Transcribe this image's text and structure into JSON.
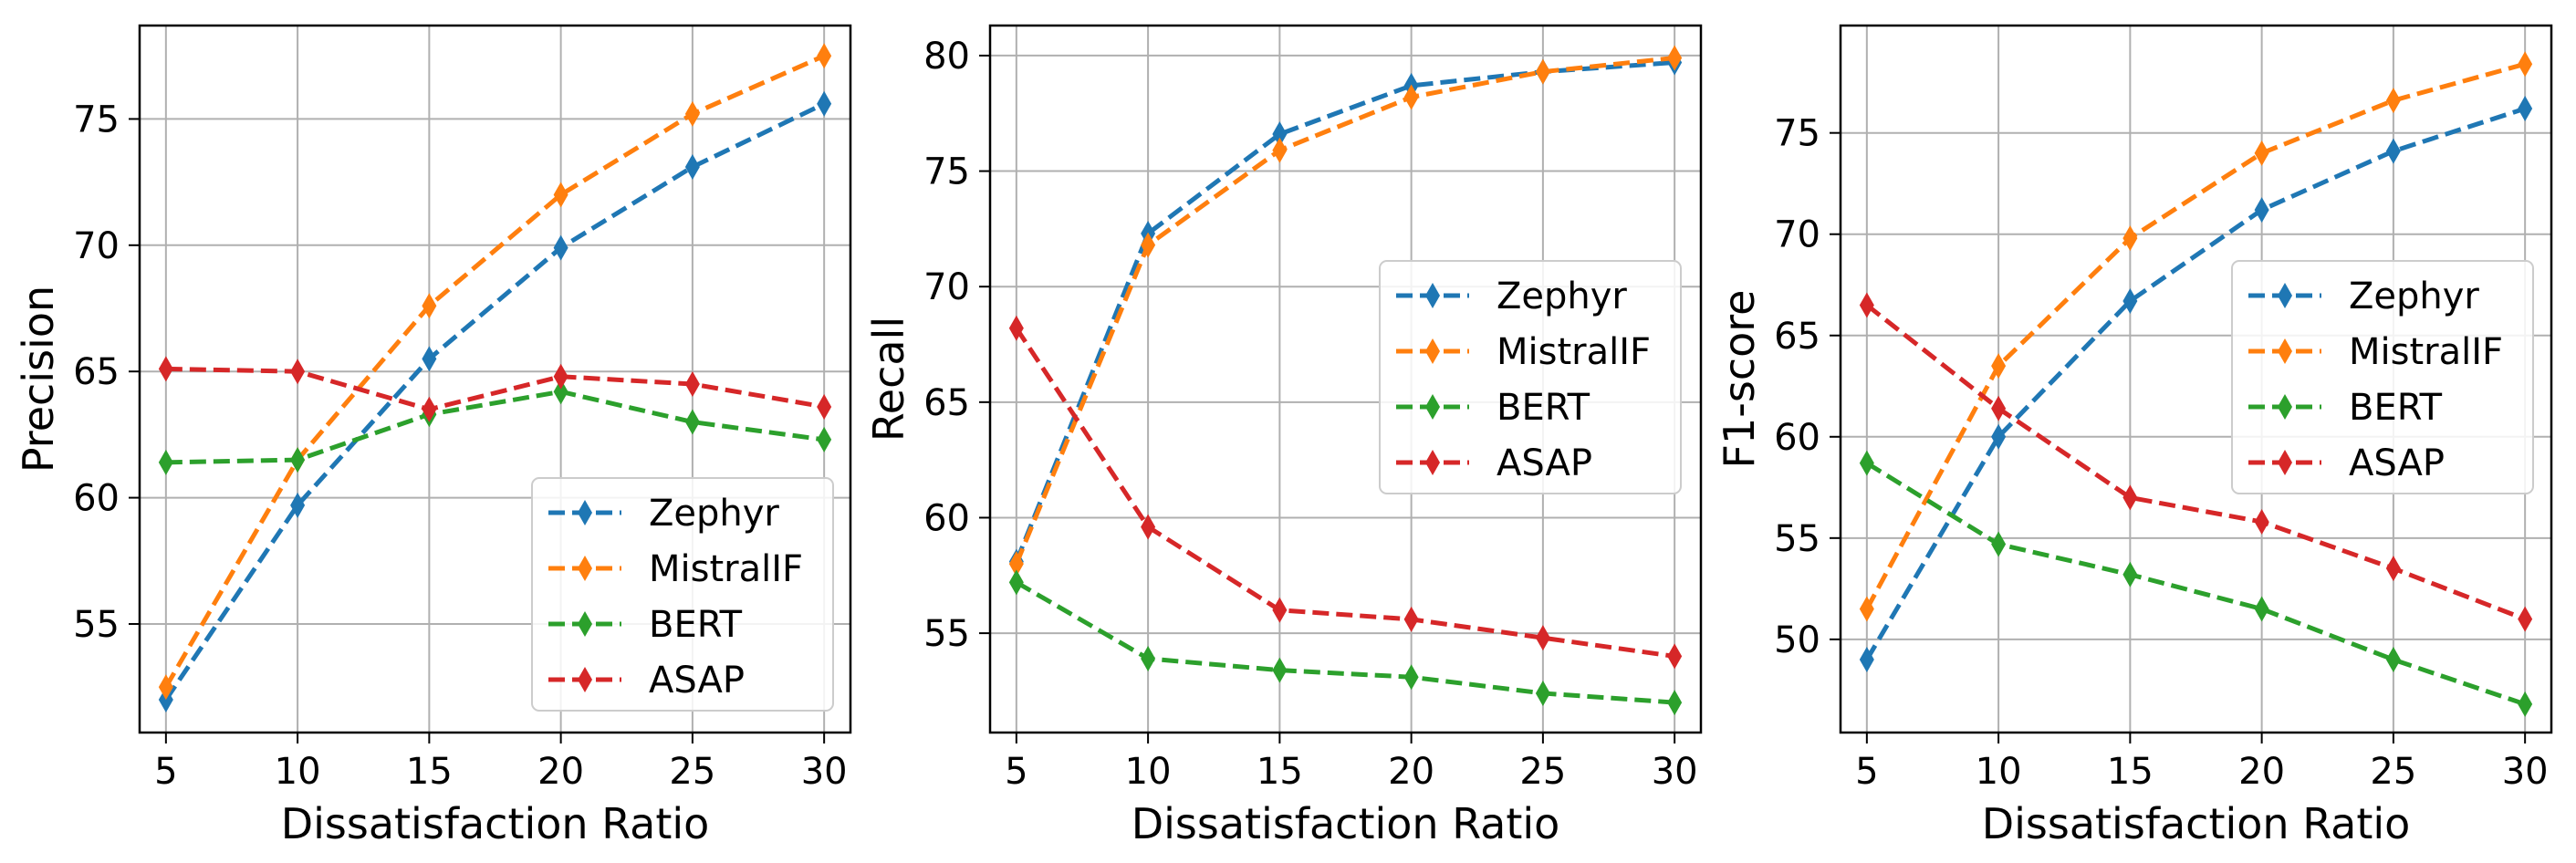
{
  "colors": {
    "Zephyr": "#1f77b4",
    "MistralIF": "#ff7f0e",
    "BERT": "#2ca02c",
    "ASAP": "#d62728",
    "grid": "#b0b0b0",
    "axes": "#000000"
  },
  "chart_data": [
    {
      "type": "line",
      "title": "",
      "xlabel": "Dissatisfaction Ratio",
      "ylabel": "Precision",
      "x": [
        5,
        10,
        15,
        20,
        25,
        30
      ],
      "xticks": [
        5,
        10,
        15,
        20,
        25,
        30
      ],
      "yticks": [
        55,
        60,
        65,
        70,
        75
      ],
      "xlim": [
        4.0,
        31.0
      ],
      "ylim": [
        50.7,
        78.7
      ],
      "grid": true,
      "legend_position": "lower-right",
      "marker": "thin-diamond",
      "linestyle": "dashed",
      "series": [
        {
          "name": "Zephyr",
          "values": [
            52.0,
            59.7,
            65.5,
            69.9,
            73.1,
            75.6
          ]
        },
        {
          "name": "MistralIF",
          "values": [
            52.5,
            61.5,
            67.6,
            72.0,
            75.2,
            77.5
          ]
        },
        {
          "name": "BERT",
          "values": [
            61.4,
            61.5,
            63.3,
            64.2,
            63.0,
            62.3
          ]
        },
        {
          "name": "ASAP",
          "values": [
            65.1,
            65.0,
            63.5,
            64.8,
            64.5,
            63.6
          ]
        }
      ]
    },
    {
      "type": "line",
      "title": "",
      "xlabel": "Dissatisfaction Ratio",
      "ylabel": "Recall",
      "x": [
        5,
        10,
        15,
        20,
        25,
        30
      ],
      "xticks": [
        5,
        10,
        15,
        20,
        25,
        30
      ],
      "yticks": [
        55,
        60,
        65,
        70,
        75,
        80
      ],
      "xlim": [
        4.0,
        31.0
      ],
      "ylim": [
        50.7,
        81.3
      ],
      "grid": true,
      "legend_position": "center-right",
      "marker": "thin-diamond",
      "linestyle": "dashed",
      "series": [
        {
          "name": "Zephyr",
          "values": [
            58.1,
            72.3,
            76.6,
            78.7,
            79.3,
            79.7
          ]
        },
        {
          "name": "MistralIF",
          "values": [
            58.0,
            71.8,
            75.9,
            78.2,
            79.3,
            79.9
          ]
        },
        {
          "name": "BERT",
          "values": [
            57.2,
            53.9,
            53.4,
            53.1,
            52.4,
            52.0
          ]
        },
        {
          "name": "ASAP",
          "values": [
            68.2,
            59.6,
            56.0,
            55.6,
            54.8,
            54.0
          ]
        }
      ]
    },
    {
      "type": "line",
      "title": "",
      "xlabel": "Dissatisfaction Ratio",
      "ylabel": "F1-score",
      "x": [
        5,
        10,
        15,
        20,
        25,
        30
      ],
      "xticks": [
        5,
        10,
        15,
        20,
        25,
        30
      ],
      "yticks": [
        50,
        55,
        60,
        65,
        70,
        75
      ],
      "xlim": [
        4.0,
        31.0
      ],
      "ylim": [
        45.4,
        80.3
      ],
      "grid": true,
      "legend_position": "center-right",
      "marker": "thin-diamond",
      "linestyle": "dashed",
      "series": [
        {
          "name": "Zephyr",
          "values": [
            49.0,
            60.0,
            66.7,
            71.2,
            74.1,
            76.2
          ]
        },
        {
          "name": "MistralIF",
          "values": [
            51.5,
            63.5,
            69.8,
            74.0,
            76.6,
            78.4
          ]
        },
        {
          "name": "BERT",
          "values": [
            58.7,
            54.7,
            53.2,
            51.5,
            49.0,
            46.8
          ]
        },
        {
          "name": "ASAP",
          "values": [
            66.5,
            61.4,
            57.0,
            55.8,
            53.5,
            51.0
          ]
        }
      ]
    }
  ]
}
